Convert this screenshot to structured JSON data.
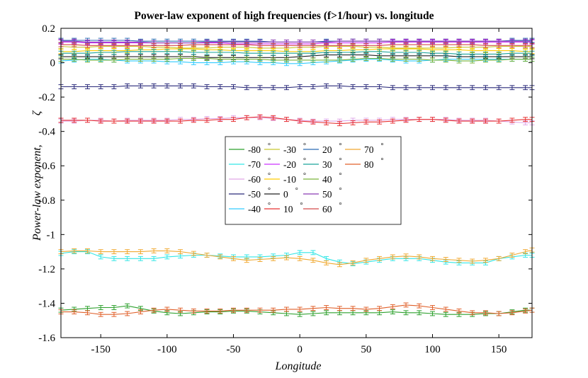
{
  "chart_data": {
    "type": "line",
    "title": "Power-law exponent of high frequencies (f>1/hour) vs. longitude",
    "xlabel": "Longitude",
    "ylabel": "Power-law exponent,",
    "ylabel_symbol": "ζ",
    "xlim": [
      -180,
      175
    ],
    "ylim": [
      -1.6,
      0.2
    ],
    "xticks": [
      -150,
      -100,
      -50,
      0,
      50,
      100,
      150
    ],
    "yticks": [
      0.2,
      0,
      -0.2,
      -0.4,
      -0.6,
      -0.8,
      -1,
      -1.2,
      -1.4,
      -1.6
    ],
    "ytick_labels": [
      "0.2",
      "0",
      "-0.2",
      "-0.4",
      "-0.6",
      "-0.8",
      "-1",
      "-1.2",
      "-1.4",
      "-1.6"
    ],
    "grid": false,
    "legend_position": "center",
    "error_bar_halfwidth": 0.012,
    "x": [
      -180,
      -170,
      -160,
      -150,
      -140,
      -130,
      -120,
      -110,
      -100,
      -90,
      -80,
      -70,
      -60,
      -50,
      -40,
      -30,
      -20,
      -10,
      0,
      10,
      20,
      30,
      40,
      50,
      60,
      70,
      80,
      90,
      100,
      110,
      120,
      130,
      140,
      150,
      160,
      170,
      175
    ],
    "series": [
      {
        "name": "-80",
        "degree_symbol": "°",
        "color": "#2ca02c",
        "values": [
          -1.44,
          -1.435,
          -1.43,
          -1.425,
          -1.425,
          -1.415,
          -1.43,
          -1.445,
          -1.455,
          -1.46,
          -1.455,
          -1.45,
          -1.45,
          -1.445,
          -1.445,
          -1.45,
          -1.455,
          -1.46,
          -1.465,
          -1.46,
          -1.455,
          -1.455,
          -1.455,
          -1.455,
          -1.455,
          -1.45,
          -1.455,
          -1.455,
          -1.46,
          -1.465,
          -1.465,
          -1.465,
          -1.46,
          -1.46,
          -1.45,
          -1.44,
          -1.44
        ]
      },
      {
        "name": "-70",
        "degree_symbol": "°",
        "color": "#33e6e6",
        "values": [
          -1.11,
          -1.1,
          -1.1,
          -1.13,
          -1.14,
          -1.14,
          -1.14,
          -1.14,
          -1.13,
          -1.125,
          -1.12,
          -1.12,
          -1.125,
          -1.13,
          -1.13,
          -1.13,
          -1.125,
          -1.12,
          -1.105,
          -1.105,
          -1.14,
          -1.16,
          -1.17,
          -1.16,
          -1.15,
          -1.14,
          -1.14,
          -1.14,
          -1.15,
          -1.16,
          -1.165,
          -1.165,
          -1.165,
          -1.14,
          -1.13,
          -1.12,
          -1.12
        ]
      },
      {
        "name": "-60",
        "degree_symbol": "°",
        "color": "#e0a8e8",
        "values": [
          -0.34,
          -0.34,
          -0.335,
          -0.335,
          -0.34,
          -0.335,
          -0.335,
          -0.335,
          -0.335,
          -0.33,
          -0.33,
          -0.325,
          -0.325,
          -0.32,
          -0.32,
          -0.32,
          -0.325,
          -0.33,
          -0.335,
          -0.34,
          -0.34,
          -0.34,
          -0.335,
          -0.335,
          -0.335,
          -0.33,
          -0.33,
          -0.33,
          -0.33,
          -0.33,
          -0.335,
          -0.335,
          -0.335,
          -0.34,
          -0.345,
          -0.35,
          -0.35
        ]
      },
      {
        "name": "-50",
        "degree_symbol": "°",
        "color": "#2a2a7a",
        "values": [
          -0.14,
          -0.14,
          -0.14,
          -0.14,
          -0.14,
          -0.135,
          -0.135,
          -0.135,
          -0.135,
          -0.135,
          -0.135,
          -0.14,
          -0.14,
          -0.14,
          -0.145,
          -0.145,
          -0.145,
          -0.145,
          -0.14,
          -0.14,
          -0.135,
          -0.135,
          -0.14,
          -0.14,
          -0.14,
          -0.145,
          -0.145,
          -0.145,
          -0.145,
          -0.145,
          -0.145,
          -0.145,
          -0.145,
          -0.145,
          -0.145,
          -0.145,
          -0.145
        ]
      },
      {
        "name": "-40",
        "degree_symbol": "°",
        "color": "#33ccff",
        "values": [
          0.01,
          0.015,
          0.02,
          0.02,
          0.015,
          0.01,
          0.01,
          0.01,
          0.005,
          0.005,
          0.0,
          0.0,
          0.0,
          0.005,
          0.005,
          0.0,
          0.0,
          -0.005,
          -0.005,
          0.0,
          0.005,
          0.01,
          0.015,
          0.02,
          0.02,
          0.015,
          0.01,
          0.01,
          0.015,
          0.02,
          0.02,
          0.02,
          0.02,
          0.02,
          0.02,
          0.02,
          0.02
        ]
      },
      {
        "name": "-30",
        "degree_symbol": "°",
        "color": "#c8c832",
        "values": [
          0.095,
          0.09,
          0.09,
          0.095,
          0.095,
          0.095,
          0.095,
          0.09,
          0.09,
          0.085,
          0.085,
          0.085,
          0.09,
          0.09,
          0.09,
          0.085,
          0.085,
          0.085,
          0.09,
          0.09,
          0.095,
          0.095,
          0.095,
          0.09,
          0.09,
          0.085,
          0.085,
          0.085,
          0.085,
          0.085,
          0.09,
          0.09,
          0.09,
          0.095,
          0.095,
          0.095,
          0.095
        ]
      },
      {
        "name": "-20",
        "degree_symbol": "°",
        "color": "#cc33ff",
        "values": [
          0.12,
          0.12,
          0.115,
          0.115,
          0.115,
          0.115,
          0.115,
          0.115,
          0.115,
          0.115,
          0.115,
          0.115,
          0.115,
          0.11,
          0.11,
          0.11,
          0.11,
          0.11,
          0.11,
          0.11,
          0.115,
          0.115,
          0.115,
          0.115,
          0.115,
          0.12,
          0.12,
          0.12,
          0.12,
          0.12,
          0.12,
          0.12,
          0.12,
          0.12,
          0.12,
          0.12,
          0.12
        ]
      },
      {
        "name": "-10",
        "degree_symbol": "°",
        "color": "#ffcc00",
        "values": [
          0.065,
          0.065,
          0.07,
          0.07,
          0.07,
          0.07,
          0.075,
          0.075,
          0.08,
          0.08,
          0.08,
          0.075,
          0.075,
          0.07,
          0.07,
          0.07,
          0.07,
          0.065,
          0.065,
          0.065,
          0.07,
          0.07,
          0.075,
          0.075,
          0.08,
          0.08,
          0.08,
          0.08,
          0.075,
          0.075,
          0.075,
          0.07,
          0.07,
          0.07,
          0.07,
          0.065,
          0.065
        ]
      },
      {
        "name": "0",
        "degree_symbol": "°",
        "color": "#222222",
        "values": [
          0.035,
          0.035,
          0.035,
          0.035,
          0.035,
          0.035,
          0.035,
          0.035,
          0.035,
          0.035,
          0.035,
          0.03,
          0.03,
          0.03,
          0.03,
          0.03,
          0.03,
          0.03,
          0.035,
          0.04,
          0.045,
          0.045,
          0.045,
          0.045,
          0.04,
          0.04,
          0.04,
          0.04,
          0.04,
          0.04,
          0.035,
          0.035,
          0.035,
          0.035,
          0.035,
          0.035,
          0.035
        ]
      },
      {
        "name": "10",
        "degree_symbol": "°",
        "color": "#e83333",
        "values": [
          -0.335,
          -0.335,
          -0.335,
          -0.34,
          -0.34,
          -0.34,
          -0.34,
          -0.34,
          -0.34,
          -0.34,
          -0.335,
          -0.335,
          -0.33,
          -0.33,
          -0.32,
          -0.315,
          -0.32,
          -0.33,
          -0.34,
          -0.345,
          -0.35,
          -0.355,
          -0.35,
          -0.345,
          -0.345,
          -0.34,
          -0.335,
          -0.33,
          -0.33,
          -0.335,
          -0.34,
          -0.34,
          -0.34,
          -0.34,
          -0.335,
          -0.33,
          -0.33
        ]
      },
      {
        "name": "20",
        "degree_symbol": "°",
        "color": "#2a6ab3",
        "values": [
          0.13,
          0.13,
          0.13,
          0.13,
          0.13,
          0.13,
          0.125,
          0.125,
          0.125,
          0.125,
          0.125,
          0.125,
          0.125,
          0.125,
          0.125,
          0.125,
          0.12,
          0.12,
          0.12,
          0.12,
          0.125,
          0.125,
          0.125,
          0.125,
          0.125,
          0.125,
          0.125,
          0.125,
          0.125,
          0.125,
          0.125,
          0.125,
          0.125,
          0.125,
          0.13,
          0.13,
          0.13
        ]
      },
      {
        "name": "30",
        "degree_symbol": "°",
        "color": "#1aa39a",
        "values": [
          0.055,
          0.055,
          0.055,
          0.06,
          0.06,
          0.065,
          0.065,
          0.065,
          0.065,
          0.065,
          0.06,
          0.06,
          0.06,
          0.06,
          0.055,
          0.055,
          0.055,
          0.055,
          0.055,
          0.055,
          0.06,
          0.06,
          0.06,
          0.065,
          0.065,
          0.06,
          0.06,
          0.06,
          0.055,
          0.055,
          0.05,
          0.05,
          0.05,
          0.05,
          0.055,
          0.055,
          0.055
        ]
      },
      {
        "name": "40",
        "degree_symbol": "°",
        "color": "#7ab33a",
        "values": [
          0.02,
          0.02,
          0.015,
          0.015,
          0.015,
          0.02,
          0.02,
          0.02,
          0.02,
          0.025,
          0.025,
          0.025,
          0.02,
          0.02,
          0.02,
          0.02,
          0.015,
          0.015,
          0.015,
          0.015,
          0.015,
          0.015,
          0.02,
          0.025,
          0.025,
          0.02,
          0.02,
          0.02,
          0.015,
          0.015,
          0.01,
          0.01,
          0.015,
          0.015,
          0.02,
          0.02,
          0.02
        ]
      },
      {
        "name": "50",
        "degree_symbol": "°",
        "color": "#8a3ab3",
        "values": [
          0.125,
          0.125,
          0.12,
          0.12,
          0.12,
          0.12,
          0.12,
          0.115,
          0.115,
          0.115,
          0.115,
          0.12,
          0.12,
          0.12,
          0.12,
          0.12,
          0.12,
          0.12,
          0.12,
          0.12,
          0.12,
          0.125,
          0.125,
          0.125,
          0.125,
          0.125,
          0.125,
          0.125,
          0.125,
          0.125,
          0.125,
          0.125,
          0.125,
          0.125,
          0.125,
          0.125,
          0.125
        ]
      },
      {
        "name": "60",
        "degree_symbol": "°",
        "color": "#d44a4a",
        "values": [
          0.105,
          0.105,
          0.1,
          0.1,
          0.1,
          0.1,
          0.1,
          0.1,
          0.1,
          0.1,
          0.105,
          0.105,
          0.105,
          0.105,
          0.105,
          0.1,
          0.1,
          0.1,
          0.1,
          0.1,
          0.1,
          0.1,
          0.1,
          0.1,
          0.1,
          0.105,
          0.105,
          0.105,
          0.105,
          0.105,
          0.105,
          0.105,
          0.1,
          0.1,
          0.1,
          0.1,
          0.1
        ]
      },
      {
        "name": "70",
        "degree_symbol": "°",
        "color": "#f0a830",
        "values": [
          -1.1,
          -1.095,
          -1.095,
          -1.1,
          -1.1,
          -1.1,
          -1.1,
          -1.095,
          -1.095,
          -1.1,
          -1.11,
          -1.12,
          -1.13,
          -1.14,
          -1.15,
          -1.145,
          -1.14,
          -1.135,
          -1.14,
          -1.15,
          -1.165,
          -1.175,
          -1.165,
          -1.15,
          -1.14,
          -1.13,
          -1.125,
          -1.13,
          -1.14,
          -1.145,
          -1.15,
          -1.155,
          -1.15,
          -1.14,
          -1.12,
          -1.1,
          -1.09
        ]
      },
      {
        "name": "80",
        "degree_symbol": "°",
        "color": "#e0602a",
        "values": [
          -1.45,
          -1.45,
          -1.455,
          -1.465,
          -1.465,
          -1.46,
          -1.45,
          -1.44,
          -1.435,
          -1.44,
          -1.445,
          -1.445,
          -1.445,
          -1.44,
          -1.44,
          -1.44,
          -1.44,
          -1.435,
          -1.435,
          -1.43,
          -1.425,
          -1.43,
          -1.43,
          -1.435,
          -1.43,
          -1.42,
          -1.41,
          -1.415,
          -1.425,
          -1.435,
          -1.445,
          -1.455,
          -1.455,
          -1.46,
          -1.455,
          -1.445,
          -1.44
        ]
      }
    ]
  }
}
